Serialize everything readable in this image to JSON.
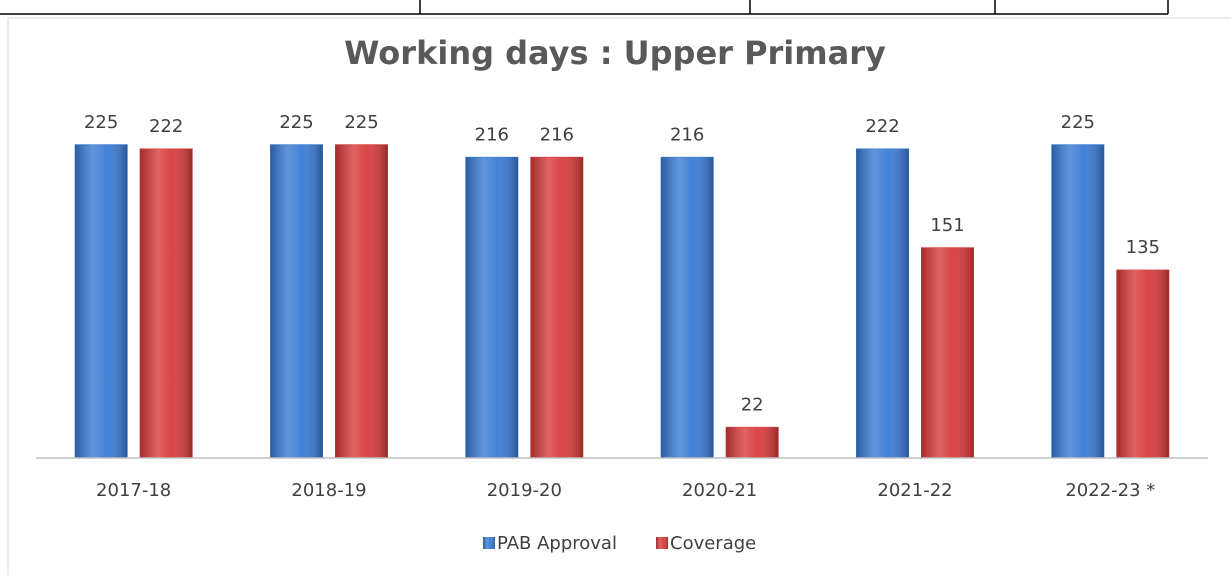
{
  "chart_data": {
    "type": "bar",
    "title": "Working days : Upper Primary",
    "categories": [
      "2017-18",
      "2018-19",
      "2019-20",
      "2020-21",
      "2021-22",
      "2022-23 *"
    ],
    "series": [
      {
        "name": "PAB Approval",
        "color": "#3a7bd5",
        "values": [
          225,
          225,
          216,
          216,
          222,
          225
        ]
      },
      {
        "name": "Coverage",
        "color": "#d83b3b",
        "values": [
          222,
          225,
          216,
          22,
          151,
          135
        ]
      }
    ],
    "ylim": [
      0,
      250
    ],
    "legend": "bottom"
  }
}
